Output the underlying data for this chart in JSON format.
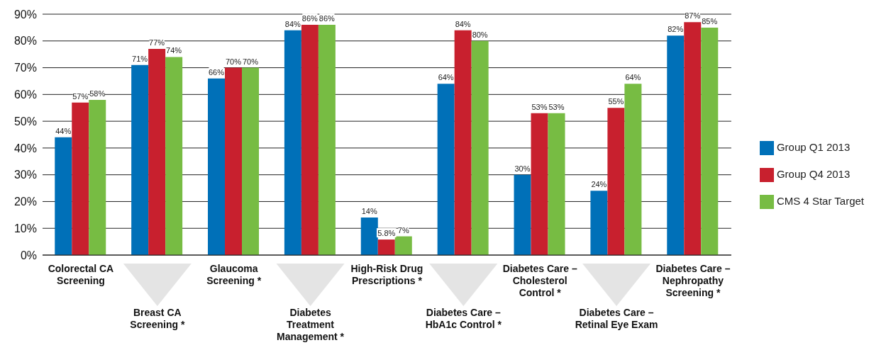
{
  "chart_data": {
    "type": "bar",
    "categories": [
      "Colorectal CA\nScreening",
      "Breast CA\nScreening *",
      "Glaucoma\nScreening *",
      "Diabetes\nTreatment\nManagement *",
      "High-Risk Drug\nPrescriptions *",
      "Diabetes Care –\nHbA1c Control *",
      "Diabetes Care –\nCholesterol\nControl *",
      "Diabetes Care –\nRetinal Eye Exam",
      "Diabetes Care –\nNephropathy\nScreening *"
    ],
    "series": [
      {
        "name": "Group Q1 2013",
        "color": "#0070b8",
        "values": [
          44,
          71,
          66,
          84,
          14,
          64,
          30,
          24,
          82
        ],
        "value_labels": [
          "44%",
          "71%",
          "66%",
          "84%",
          "14%",
          "64%",
          "30%",
          "24%",
          "82%"
        ]
      },
      {
        "name": "Group Q4 2013",
        "color": "#c8202e",
        "values": [
          57,
          77,
          70,
          86,
          5.8,
          84,
          53,
          55,
          87
        ],
        "value_labels": [
          "57%",
          "77%",
          "70%",
          "86%",
          "5.8%",
          "84%",
          "53%",
          "55%",
          "87%"
        ]
      },
      {
        "name": "CMS 4 Star Target",
        "color": "#77bc43",
        "values": [
          58,
          74,
          70,
          86,
          7,
          80,
          53,
          64,
          85
        ],
        "value_labels": [
          "58%",
          "74%",
          "70%",
          "86%",
          "7%",
          "80%",
          "53%",
          "64%",
          "85%"
        ]
      }
    ],
    "ylim": [
      0,
      90
    ],
    "yticks": [
      {
        "value": 0,
        "label": "0%"
      },
      {
        "value": 10,
        "label": "10%"
      },
      {
        "value": 20,
        "label": "20%"
      },
      {
        "value": 30,
        "label": "30%"
      },
      {
        "value": 40,
        "label": "40%"
      },
      {
        "value": 50,
        "label": "50%"
      },
      {
        "value": 60,
        "label": "60%"
      },
      {
        "value": 70,
        "label": "70%"
      },
      {
        "value": 80,
        "label": "80%"
      },
      {
        "value": 90,
        "label": "90%"
      }
    ],
    "grid": "y",
    "legend": "right"
  }
}
